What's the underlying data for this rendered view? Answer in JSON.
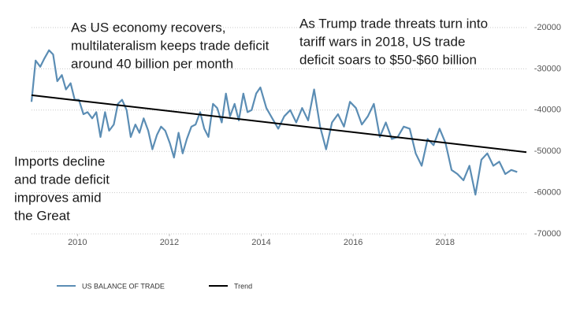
{
  "chart_data": {
    "type": "line",
    "annotations": [
      [
        "As US economy recovers,",
        "multilateralism keeps trade deficit",
        "around 40 billion per month"
      ],
      [
        "As Trump trade threats turn into",
        "tariff wars in 2018, US trade",
        "deficit soars to $50-$60 billion"
      ],
      [
        "Imports decline",
        "and trade deficit",
        "improves amid",
        "the Great"
      ]
    ],
    "xlim": [
      2009,
      2019.77
    ],
    "xticks": [
      2010,
      2012,
      2014,
      2016,
      2018
    ],
    "ylim": [
      -70000,
      -20000
    ],
    "yticks": [
      -20000,
      -30000,
      -40000,
      -50000,
      -60000,
      -70000
    ],
    "grid": true,
    "series": [
      {
        "name": "US BALANCE OF TRADE",
        "color": "#5b8db4",
        "x": [
          2009.0,
          2009.09,
          2009.19,
          2009.28,
          2009.38,
          2009.47,
          2009.56,
          2009.66,
          2009.75,
          2009.85,
          2009.94,
          2010.03,
          2010.13,
          2010.22,
          2010.32,
          2010.41,
          2010.5,
          2010.6,
          2010.69,
          2010.79,
          2010.88,
          2010.97,
          2011.07,
          2011.16,
          2011.26,
          2011.35,
          2011.44,
          2011.54,
          2011.63,
          2011.73,
          2011.82,
          2011.91,
          2012.01,
          2012.1,
          2012.2,
          2012.29,
          2012.38,
          2012.48,
          2012.57,
          2012.67,
          2012.76,
          2012.85,
          2012.95,
          2013.04,
          2013.14,
          2013.23,
          2013.32,
          2013.42,
          2013.51,
          2013.61,
          2013.7,
          2013.79,
          2013.89,
          2013.98,
          2014.11,
          2014.24,
          2014.37,
          2014.5,
          2014.63,
          2014.76,
          2014.89,
          2015.02,
          2015.15,
          2015.28,
          2015.41,
          2015.54,
          2015.67,
          2015.8,
          2015.93,
          2016.06,
          2016.19,
          2016.32,
          2016.45,
          2016.58,
          2016.71,
          2016.84,
          2016.97,
          2017.1,
          2017.23,
          2017.36,
          2017.49,
          2017.62,
          2017.75,
          2017.88,
          2018.01,
          2018.14,
          2018.27,
          2018.4,
          2018.53,
          2018.66,
          2018.79,
          2018.92,
          2019.05,
          2019.18,
          2019.31,
          2019.44,
          2019.57
        ],
        "values": [
          -38000,
          -28000,
          -29500,
          -27500,
          -25500,
          -26500,
          -33000,
          -31500,
          -35000,
          -33500,
          -37500,
          -37500,
          -41000,
          -40500,
          -42000,
          -40500,
          -46500,
          -40500,
          -45000,
          -43500,
          -38500,
          -37500,
          -40000,
          -46500,
          -43500,
          -45500,
          -42000,
          -45000,
          -49500,
          -46000,
          -44000,
          -45000,
          -48000,
          -51500,
          -45500,
          -50500,
          -47000,
          -44000,
          -43500,
          -40500,
          -44500,
          -46500,
          -38500,
          -39500,
          -43000,
          -36000,
          -41500,
          -38500,
          -42500,
          -36000,
          -40500,
          -40000,
          -36000,
          -34500,
          -39500,
          -42000,
          -44500,
          -41500,
          -40000,
          -43000,
          -39500,
          -42500,
          -35000,
          -44000,
          -49500,
          -43000,
          -41000,
          -44000,
          -38000,
          -39500,
          -43500,
          -41500,
          -38500,
          -46500,
          -43000,
          -47000,
          -46500,
          -44000,
          -44500,
          -50500,
          -53500,
          -47000,
          -48500,
          -44500,
          -48000,
          -54500,
          -55500,
          -57000,
          -53500,
          -60500,
          -52000,
          -50500,
          -53500,
          -52500,
          -55500,
          -54500,
          -55000
        ]
      },
      {
        "name": "Trend",
        "color": "#000000",
        "x": [
          2009.0,
          2019.77
        ],
        "values": [
          -36400,
          -50200
        ]
      }
    ]
  }
}
